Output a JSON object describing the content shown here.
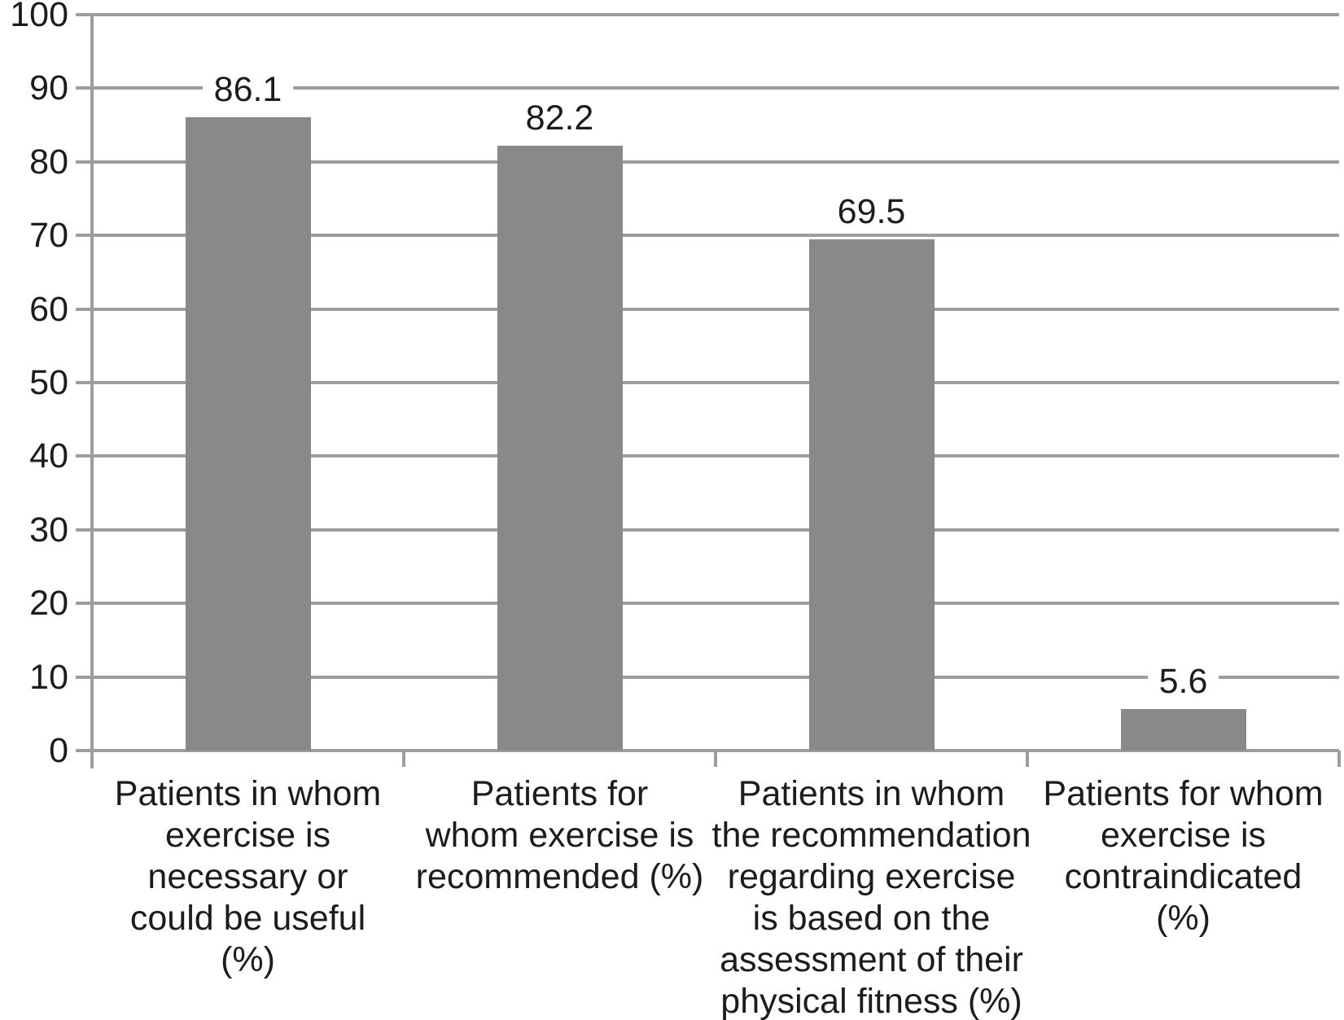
{
  "figure": {
    "background": "#ffffff"
  },
  "chart_data": {
    "type": "bar",
    "title": "",
    "xlabel": "",
    "ylabel": "",
    "ylim": [
      0,
      100
    ],
    "yticks": [
      0,
      10,
      20,
      30,
      40,
      50,
      60,
      70,
      80,
      90,
      100
    ],
    "ytick_labels": [
      "0",
      "10",
      "20",
      "30",
      "40",
      "50",
      "60",
      "70",
      "80",
      "90",
      "100"
    ],
    "grid": true,
    "legend": "none",
    "bar_color": "#87898b",
    "grid_color": "#9d9d9d",
    "text_color": "#1c1c1c",
    "categories": [
      "Patients in whom exercise is necessary or could be useful (%)",
      "Patients for whom exercise is recommended (%)",
      "Patients in whom the recommendation regarding exercise is based on the assessment of their physical fitness (%)",
      "Patients for whom exercise is contraindicated (%)"
    ],
    "category_lines": [
      [
        "Patients in whom",
        "exercise is",
        "necessary or",
        "could be useful",
        "(%)"
      ],
      [
        "Patients for",
        "whom exercise is",
        "recommended (%)"
      ],
      [
        "Patients in whom",
        "the recommendation",
        "regarding exercise",
        "is based on the",
        "assessment of their",
        "physical fitness (%)"
      ],
      [
        "Patients for whom",
        "exercise is",
        "contraindicated",
        "(%)"
      ]
    ],
    "values": [
      86.1,
      82.2,
      69.5,
      5.6
    ],
    "value_labels": [
      "86.1",
      "82.2",
      "69.5",
      "5.6"
    ]
  }
}
